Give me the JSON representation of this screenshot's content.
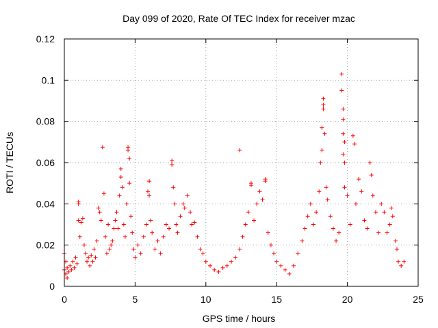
{
  "chart_data": {
    "type": "scatter",
    "title": "Day 099 of 2020, Rate Of TEC Index for receiver mzac",
    "xlabel": "GPS time / hours",
    "ylabel": "ROTI / TECUs",
    "xlim": [
      0,
      25
    ],
    "ylim": [
      0,
      0.12
    ],
    "xticks": [
      0,
      5,
      10,
      15,
      20,
      25
    ],
    "yticks": [
      0,
      0.02,
      0.04,
      0.06,
      0.08,
      0.1,
      0.12
    ],
    "xtick_labels": [
      "0",
      "5",
      "10",
      "15",
      "20",
      "25"
    ],
    "ytick_labels": [
      "0",
      "0.02",
      "0.04",
      "0.06",
      "0.08",
      "0.1",
      "0.12"
    ],
    "grid": true,
    "marker": "+",
    "color": "#ff0000",
    "series": [
      {
        "name": "ROTI",
        "points": [
          [
            0.0,
            0.008
          ],
          [
            0.0,
            0.016
          ],
          [
            0.1,
            0.006
          ],
          [
            0.1,
            0.012
          ],
          [
            0.2,
            0.004
          ],
          [
            0.2,
            0.009
          ],
          [
            0.3,
            0.007
          ],
          [
            0.4,
            0.01
          ],
          [
            0.5,
            0.008
          ],
          [
            0.6,
            0.012
          ],
          [
            0.7,
            0.009
          ],
          [
            0.8,
            0.014
          ],
          [
            0.9,
            0.011
          ],
          [
            1.0,
            0.04
          ],
          [
            1.0,
            0.041
          ],
          [
            1.0,
            0.032
          ],
          [
            1.1,
            0.024
          ],
          [
            1.2,
            0.031
          ],
          [
            1.3,
            0.033
          ],
          [
            1.4,
            0.02
          ],
          [
            1.5,
            0.016
          ],
          [
            1.6,
            0.012
          ],
          [
            1.7,
            0.014
          ],
          [
            1.8,
            0.01
          ],
          [
            1.9,
            0.015
          ],
          [
            2.0,
            0.012
          ],
          [
            2.1,
            0.018
          ],
          [
            2.2,
            0.014
          ],
          [
            2.3,
            0.022
          ],
          [
            2.4,
            0.038
          ],
          [
            2.5,
            0.036
          ],
          [
            2.6,
            0.032
          ],
          [
            2.7,
            0.0675
          ],
          [
            2.8,
            0.045
          ],
          [
            2.9,
            0.024
          ],
          [
            3.0,
            0.016
          ],
          [
            3.1,
            0.03
          ],
          [
            3.2,
            0.018
          ],
          [
            3.3,
            0.02
          ],
          [
            3.4,
            0.022
          ],
          [
            3.5,
            0.028
          ],
          [
            3.6,
            0.032
          ],
          [
            3.7,
            0.036
          ],
          [
            3.8,
            0.028
          ],
          [
            3.9,
            0.044
          ],
          [
            4.0,
            0.053
          ],
          [
            4.0,
            0.057
          ],
          [
            4.1,
            0.048
          ],
          [
            4.2,
            0.03
          ],
          [
            4.3,
            0.024
          ],
          [
            4.4,
            0.04
          ],
          [
            4.5,
            0.0675
          ],
          [
            4.5,
            0.066
          ],
          [
            4.6,
            0.062
          ],
          [
            4.6,
            0.05
          ],
          [
            4.7,
            0.034
          ],
          [
            4.8,
            0.026
          ],
          [
            4.9,
            0.018
          ],
          [
            5.0,
            0.014
          ],
          [
            5.2,
            0.02
          ],
          [
            5.4,
            0.016
          ],
          [
            5.6,
            0.024
          ],
          [
            5.8,
            0.03
          ],
          [
            5.9,
            0.046
          ],
          [
            6.0,
            0.051
          ],
          [
            6.0,
            0.044
          ],
          [
            6.1,
            0.032
          ],
          [
            6.2,
            0.026
          ],
          [
            6.4,
            0.018
          ],
          [
            6.6,
            0.022
          ],
          [
            6.8,
            0.016
          ],
          [
            7.0,
            0.024
          ],
          [
            7.2,
            0.03
          ],
          [
            7.4,
            0.028
          ],
          [
            7.6,
            0.061
          ],
          [
            7.6,
            0.059
          ],
          [
            7.7,
            0.048
          ],
          [
            7.8,
            0.04
          ],
          [
            7.9,
            0.03
          ],
          [
            8.0,
            0.026
          ],
          [
            8.2,
            0.034
          ],
          [
            8.4,
            0.04
          ],
          [
            8.5,
            0.038
          ],
          [
            8.7,
            0.044
          ],
          [
            8.9,
            0.036
          ],
          [
            9.0,
            0.03
          ],
          [
            9.2,
            0.031
          ],
          [
            9.4,
            0.024
          ],
          [
            9.6,
            0.018
          ],
          [
            9.8,
            0.016
          ],
          [
            10.0,
            0.012
          ],
          [
            10.3,
            0.01
          ],
          [
            10.6,
            0.008
          ],
          [
            10.9,
            0.007
          ],
          [
            11.2,
            0.009
          ],
          [
            11.5,
            0.01
          ],
          [
            11.8,
            0.012
          ],
          [
            12.1,
            0.014
          ],
          [
            12.4,
            0.066
          ],
          [
            12.4,
            0.018
          ],
          [
            12.6,
            0.024
          ],
          [
            12.8,
            0.03
          ],
          [
            13.0,
            0.036
          ],
          [
            13.2,
            0.05
          ],
          [
            13.2,
            0.049
          ],
          [
            13.4,
            0.032
          ],
          [
            13.6,
            0.04
          ],
          [
            13.8,
            0.046
          ],
          [
            14.0,
            0.042
          ],
          [
            14.2,
            0.052
          ],
          [
            14.2,
            0.051
          ],
          [
            14.4,
            0.026
          ],
          [
            14.6,
            0.02
          ],
          [
            14.8,
            0.016
          ],
          [
            15.0,
            0.012
          ],
          [
            15.3,
            0.01
          ],
          [
            15.6,
            0.008
          ],
          [
            15.9,
            0.006
          ],
          [
            16.2,
            0.01
          ],
          [
            16.5,
            0.016
          ],
          [
            16.8,
            0.022
          ],
          [
            17.0,
            0.028
          ],
          [
            17.2,
            0.034
          ],
          [
            17.4,
            0.04
          ],
          [
            17.6,
            0.03
          ],
          [
            17.8,
            0.036
          ],
          [
            18.0,
            0.046
          ],
          [
            18.1,
            0.06
          ],
          [
            18.2,
            0.066
          ],
          [
            18.2,
            0.077
          ],
          [
            18.3,
            0.091
          ],
          [
            18.3,
            0.088
          ],
          [
            18.3,
            0.086
          ],
          [
            18.4,
            0.074
          ],
          [
            18.5,
            0.048
          ],
          [
            18.6,
            0.042
          ],
          [
            18.8,
            0.034
          ],
          [
            19.0,
            0.028
          ],
          [
            19.2,
            0.022
          ],
          [
            19.4,
            0.026
          ],
          [
            19.6,
            0.103
          ],
          [
            19.6,
            0.095
          ],
          [
            19.7,
            0.086
          ],
          [
            19.7,
            0.081
          ],
          [
            19.7,
            0.074
          ],
          [
            19.7,
            0.064
          ],
          [
            19.8,
            0.07
          ],
          [
            19.8,
            0.06
          ],
          [
            19.8,
            0.048
          ],
          [
            20.0,
            0.044
          ],
          [
            20.2,
            0.03
          ],
          [
            20.4,
            0.073
          ],
          [
            20.5,
            0.069
          ],
          [
            20.6,
            0.04
          ],
          [
            20.8,
            0.052
          ],
          [
            21.0,
            0.046
          ],
          [
            21.2,
            0.032
          ],
          [
            21.4,
            0.028
          ],
          [
            21.6,
            0.06
          ],
          [
            21.7,
            0.054
          ],
          [
            21.8,
            0.044
          ],
          [
            22.0,
            0.036
          ],
          [
            22.2,
            0.026
          ],
          [
            22.4,
            0.04
          ],
          [
            22.6,
            0.036
          ],
          [
            22.8,
            0.026
          ],
          [
            23.0,
            0.03
          ],
          [
            23.1,
            0.038
          ],
          [
            23.2,
            0.034
          ],
          [
            23.4,
            0.022
          ],
          [
            23.5,
            0.018
          ],
          [
            23.6,
            0.012
          ],
          [
            23.8,
            0.01
          ],
          [
            24.0,
            0.012
          ]
        ]
      }
    ]
  }
}
